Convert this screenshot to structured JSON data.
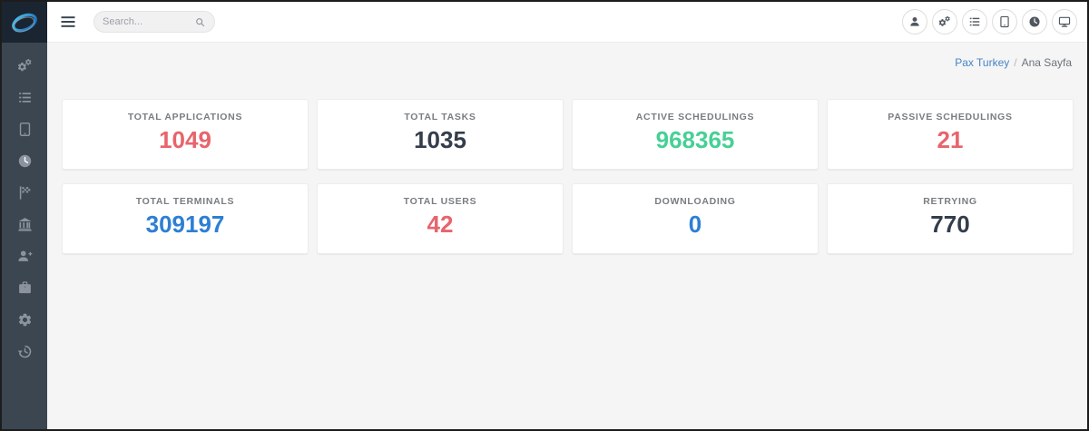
{
  "topbar": {
    "search_placeholder": "Search...",
    "icons": [
      "user",
      "cogs",
      "list",
      "tablet",
      "clock",
      "desktop"
    ]
  },
  "sidebar": {
    "items": [
      "cogs",
      "list",
      "tablet",
      "clock",
      "flag-checkered",
      "bank",
      "user-plus",
      "briefcase",
      "gear",
      "history"
    ]
  },
  "breadcrumb": {
    "parent": "Pax Turkey",
    "separator": "/",
    "current": "Ana Sayfa"
  },
  "cards": [
    {
      "label": "TOTAL APPLICATIONS",
      "value": "1049",
      "color": "#e8646c"
    },
    {
      "label": "TOTAL TASKS",
      "value": "1035",
      "color": "#343d4b"
    },
    {
      "label": "ACTIVE SCHEDULINGS",
      "value": "968365",
      "color": "#47d095"
    },
    {
      "label": "PASSIVE SCHEDULINGS",
      "value": "21",
      "color": "#e8646c"
    },
    {
      "label": "TOTAL TERMINALS",
      "value": "309197",
      "color": "#2d7fd4"
    },
    {
      "label": "TOTAL USERS",
      "value": "42",
      "color": "#e8646c"
    },
    {
      "label": "DOWNLOADING",
      "value": "0",
      "color": "#2d7fd4"
    },
    {
      "label": "RETRYING",
      "value": "770",
      "color": "#343d4b"
    }
  ],
  "colors": {
    "sidebar_bg": "#3c4651",
    "logo_bg": "#1b2531",
    "content_bg": "#f5f5f6",
    "link_blue": "#4584c4",
    "value_red": "#e8646c",
    "value_green": "#47d095",
    "value_blue": "#2d7fd4",
    "value_dark": "#343d4b"
  }
}
